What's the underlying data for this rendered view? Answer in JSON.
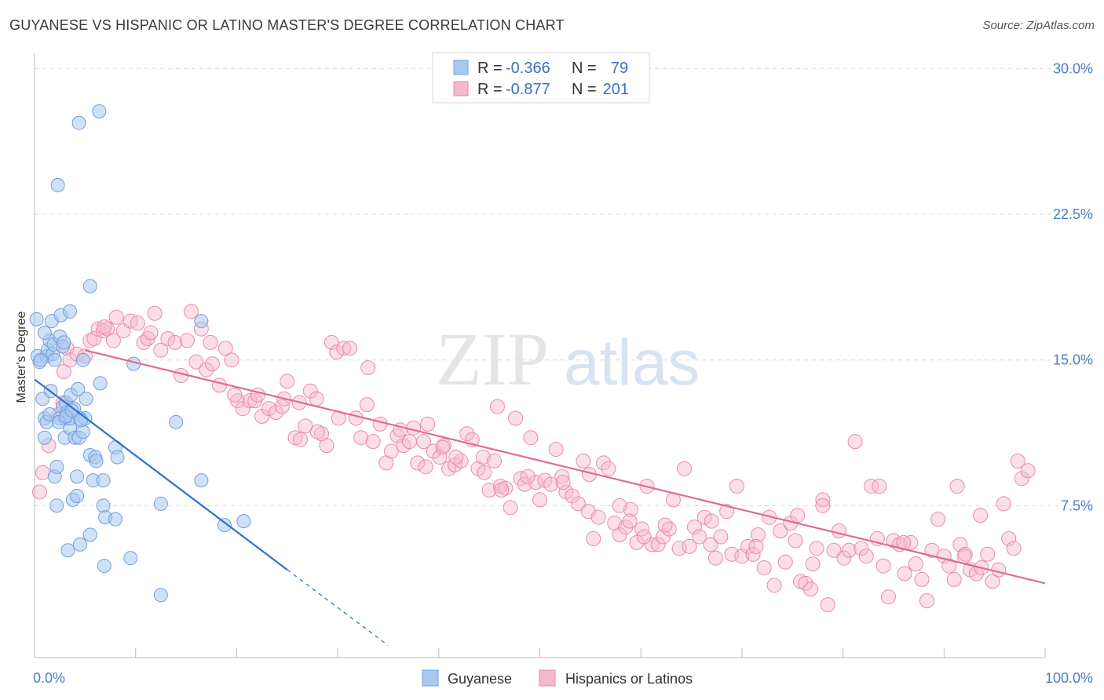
{
  "title": "GUYANESE VS HISPANIC OR LATINO MASTER'S DEGREE CORRELATION CHART",
  "source": "Source: ZipAtlas.com",
  "watermark": {
    "zip": "ZIP",
    "atlas": "atlas"
  },
  "colors": {
    "blue_fill": "#a9c8f0",
    "blue_stroke": "#6f9fdc",
    "blue_line": "#2f6fd0",
    "pink_fill": "#f6b8cb",
    "pink_stroke": "#e98aa8",
    "pink_line": "#e06a96",
    "grid": "#d9d9d9",
    "tick_text": "#4a7fc8"
  },
  "legend": {
    "rows": [
      {
        "r_label": "R = ",
        "r_value": "-0.366",
        "n_label": "N = ",
        "n_value": "79"
      },
      {
        "r_label": "R = ",
        "r_value": "-0.877",
        "n_label": "N = ",
        "n_value": "201"
      }
    ]
  },
  "chart_data": {
    "type": "scatter",
    "title": "GUYANESE VS HISPANIC OR LATINO MASTER'S DEGREE CORRELATION CHART",
    "xlabel": "",
    "ylabel": "Master's Degree",
    "xlim": [
      0,
      100
    ],
    "ylim": [
      0,
      30.5
    ],
    "x_tick_labels": [
      "0.0%",
      "100.0%"
    ],
    "y_ticks": [
      7.5,
      15.0,
      22.5,
      30.0
    ],
    "y_tick_labels": [
      "7.5%",
      "15.0%",
      "22.5%",
      "30.0%"
    ],
    "grid": true,
    "legend_placement": "top-center",
    "series": [
      {
        "name": "Guyanese",
        "color": "#a9c8f0",
        "trend": {
          "x": [
            0,
            25,
            35
          ],
          "y": [
            14.0,
            4.2,
            0.3
          ]
        },
        "points": [
          [
            0.2,
            17.1
          ],
          [
            0.3,
            15.2
          ],
          [
            0.5,
            14.9
          ],
          [
            0.8,
            13.0
          ],
          [
            1.0,
            12.0
          ],
          [
            1.0,
            11.0
          ],
          [
            1.2,
            11.8
          ],
          [
            1.2,
            15.2
          ],
          [
            1.3,
            15.5
          ],
          [
            1.5,
            16.0
          ],
          [
            1.5,
            12.2
          ],
          [
            1.7,
            17.0
          ],
          [
            1.8,
            15.3
          ],
          [
            1.9,
            15.8
          ],
          [
            2.0,
            15.0
          ],
          [
            2.0,
            9.0
          ],
          [
            2.2,
            9.5
          ],
          [
            2.2,
            7.5
          ],
          [
            2.5,
            12.0
          ],
          [
            2.5,
            16.2
          ],
          [
            2.6,
            17.3
          ],
          [
            2.8,
            12.6
          ],
          [
            2.8,
            15.7
          ],
          [
            3.0,
            11.0
          ],
          [
            3.0,
            12.0
          ],
          [
            3.1,
            12.8
          ],
          [
            3.2,
            12.3
          ],
          [
            3.3,
            5.2
          ],
          [
            3.5,
            11.5
          ],
          [
            3.5,
            12.0
          ],
          [
            3.6,
            13.2
          ],
          [
            3.8,
            7.8
          ],
          [
            3.5,
            17.5
          ],
          [
            3.9,
            12.5
          ],
          [
            4.0,
            11.0
          ],
          [
            4.2,
            8.0
          ],
          [
            4.2,
            9.0
          ],
          [
            4.3,
            13.5
          ],
          [
            4.4,
            11.0
          ],
          [
            4.5,
            12.0
          ],
          [
            4.5,
            5.5
          ],
          [
            4.8,
            15.0
          ],
          [
            4.8,
            11.3
          ],
          [
            5.0,
            12.0
          ],
          [
            5.1,
            13.0
          ],
          [
            5.5,
            10.1
          ],
          [
            5.8,
            8.8
          ],
          [
            5.5,
            6.0
          ],
          [
            6.0,
            10.0
          ],
          [
            6.1,
            9.8
          ],
          [
            6.5,
            13.8
          ],
          [
            6.8,
            7.5
          ],
          [
            6.8,
            8.8
          ],
          [
            6.9,
            4.4
          ],
          [
            7.0,
            6.9
          ],
          [
            8.0,
            6.8
          ],
          [
            8.0,
            10.5
          ],
          [
            8.2,
            10.0
          ],
          [
            9.5,
            4.8
          ],
          [
            9.8,
            14.8
          ],
          [
            12.5,
            7.6
          ],
          [
            12.5,
            2.9
          ],
          [
            14.0,
            11.8
          ],
          [
            16.5,
            8.8
          ],
          [
            16.5,
            17.0
          ],
          [
            18.8,
            6.5
          ],
          [
            20.7,
            6.7
          ],
          [
            5.5,
            18.8
          ],
          [
            2.3,
            24.0
          ],
          [
            4.4,
            27.2
          ],
          [
            6.4,
            27.8
          ],
          [
            1.0,
            16.4
          ],
          [
            0.6,
            15.0
          ],
          [
            2.4,
            11.8
          ],
          [
            3.1,
            12.1
          ],
          [
            1.6,
            13.4
          ],
          [
            4.6,
            11.9
          ],
          [
            3.7,
            12.4
          ],
          [
            2.9,
            15.9
          ]
        ]
      },
      {
        "name": "Hispanics or Latinos",
        "color": "#f6b8cb",
        "trend": {
          "x": [
            5,
            100
          ],
          "y": [
            15.5,
            3.5
          ]
        },
        "points": [
          [
            0.5,
            8.2
          ],
          [
            0.8,
            9.2
          ],
          [
            1.4,
            10.6
          ],
          [
            2.4,
            12.2
          ],
          [
            2.8,
            12.8
          ],
          [
            3.2,
            15.6
          ],
          [
            2.9,
            14.4
          ],
          [
            3.5,
            15.0
          ],
          [
            4.2,
            15.3
          ],
          [
            5.0,
            15.2
          ],
          [
            5.5,
            16.0
          ],
          [
            5.9,
            16.1
          ],
          [
            6.3,
            16.6
          ],
          [
            6.8,
            16.5
          ],
          [
            7.2,
            16.6
          ],
          [
            7.8,
            16.0
          ],
          [
            8.1,
            17.2
          ],
          [
            8.8,
            16.5
          ],
          [
            9.5,
            17.0
          ],
          [
            10.2,
            16.9
          ],
          [
            10.8,
            15.9
          ],
          [
            11.2,
            16.1
          ],
          [
            11.9,
            17.4
          ],
          [
            12.5,
            15.5
          ],
          [
            13.2,
            16.1
          ],
          [
            13.9,
            15.9
          ],
          [
            14.5,
            14.2
          ],
          [
            15.1,
            16.0
          ],
          [
            15.5,
            17.5
          ],
          [
            16.0,
            14.9
          ],
          [
            16.5,
            16.6
          ],
          [
            17.0,
            14.5
          ],
          [
            17.6,
            14.8
          ],
          [
            18.3,
            13.7
          ],
          [
            18.9,
            15.6
          ],
          [
            19.5,
            15.0
          ],
          [
            20.1,
            12.9
          ],
          [
            20.6,
            12.5
          ],
          [
            21.3,
            12.9
          ],
          [
            21.8,
            12.9
          ],
          [
            22.5,
            12.1
          ],
          [
            23.2,
            12.5
          ],
          [
            23.9,
            12.3
          ],
          [
            24.5,
            12.6
          ],
          [
            25.0,
            13.9
          ],
          [
            25.8,
            11.0
          ],
          [
            26.2,
            12.8
          ],
          [
            26.8,
            11.6
          ],
          [
            27.3,
            13.4
          ],
          [
            27.9,
            13.0
          ],
          [
            28.4,
            11.2
          ],
          [
            28.9,
            10.6
          ],
          [
            29.4,
            15.9
          ],
          [
            29.9,
            15.4
          ],
          [
            30.6,
            15.6
          ],
          [
            31.2,
            15.6
          ],
          [
            31.8,
            12.0
          ],
          [
            32.3,
            11.0
          ],
          [
            32.9,
            12.7
          ],
          [
            33.5,
            10.8
          ],
          [
            34.2,
            11.7
          ],
          [
            34.8,
            9.7
          ],
          [
            35.3,
            10.3
          ],
          [
            35.9,
            11.1
          ],
          [
            36.5,
            10.6
          ],
          [
            37.1,
            10.8
          ],
          [
            37.5,
            11.5
          ],
          [
            37.9,
            9.7
          ],
          [
            38.5,
            10.8
          ],
          [
            38.9,
            11.7
          ],
          [
            39.5,
            10.3
          ],
          [
            40.1,
            10.0
          ],
          [
            40.5,
            10.6
          ],
          [
            41.0,
            9.4
          ],
          [
            41.6,
            9.6
          ],
          [
            42.2,
            9.8
          ],
          [
            42.8,
            11.2
          ],
          [
            43.3,
            10.9
          ],
          [
            43.9,
            9.4
          ],
          [
            44.4,
            10.0
          ],
          [
            45.0,
            8.3
          ],
          [
            45.5,
            9.8
          ],
          [
            45.8,
            12.6
          ],
          [
            46.1,
            8.5
          ],
          [
            46.6,
            8.4
          ],
          [
            47.1,
            7.4
          ],
          [
            47.6,
            12.0
          ],
          [
            48.1,
            8.9
          ],
          [
            48.5,
            8.6
          ],
          [
            49.1,
            11.0
          ],
          [
            49.6,
            8.7
          ],
          [
            50.0,
            7.8
          ],
          [
            50.5,
            8.8
          ],
          [
            51.1,
            8.6
          ],
          [
            51.6,
            10.4
          ],
          [
            52.2,
            9.0
          ],
          [
            52.6,
            8.2
          ],
          [
            53.2,
            8.0
          ],
          [
            53.8,
            7.6
          ],
          [
            54.3,
            9.8
          ],
          [
            54.8,
            7.2
          ],
          [
            55.3,
            5.8
          ],
          [
            55.8,
            6.9
          ],
          [
            56.3,
            9.7
          ],
          [
            56.8,
            9.4
          ],
          [
            57.4,
            6.6
          ],
          [
            57.9,
            6.0
          ],
          [
            58.5,
            6.4
          ],
          [
            59.0,
            7.3
          ],
          [
            59.6,
            5.6
          ],
          [
            60.1,
            6.3
          ],
          [
            60.6,
            8.5
          ],
          [
            61.1,
            5.5
          ],
          [
            61.7,
            5.5
          ],
          [
            62.2,
            5.9
          ],
          [
            62.8,
            6.3
          ],
          [
            63.2,
            7.8
          ],
          [
            63.8,
            5.3
          ],
          [
            64.3,
            9.4
          ],
          [
            64.8,
            5.4
          ],
          [
            65.3,
            6.4
          ],
          [
            65.8,
            5.9
          ],
          [
            66.3,
            6.9
          ],
          [
            66.9,
            5.5
          ],
          [
            67.4,
            4.8
          ],
          [
            67.9,
            5.9
          ],
          [
            68.5,
            7.2
          ],
          [
            69.0,
            5.0
          ],
          [
            69.5,
            8.5
          ],
          [
            70.0,
            4.9
          ],
          [
            70.6,
            5.4
          ],
          [
            71.1,
            5.0
          ],
          [
            71.6,
            6.0
          ],
          [
            72.2,
            4.3
          ],
          [
            72.7,
            6.9
          ],
          [
            73.2,
            3.4
          ],
          [
            73.8,
            6.2
          ],
          [
            74.3,
            4.6
          ],
          [
            74.8,
            6.6
          ],
          [
            75.3,
            5.7
          ],
          [
            75.8,
            3.6
          ],
          [
            76.3,
            3.5
          ],
          [
            76.8,
            3.2
          ],
          [
            77.4,
            5.3
          ],
          [
            78.0,
            7.8
          ],
          [
            78.5,
            2.4
          ],
          [
            79.1,
            5.2
          ],
          [
            79.6,
            6.2
          ],
          [
            80.1,
            4.8
          ],
          [
            80.6,
            5.2
          ],
          [
            81.2,
            10.8
          ],
          [
            81.8,
            5.3
          ],
          [
            82.3,
            4.9
          ],
          [
            82.8,
            8.5
          ],
          [
            83.4,
            5.8
          ],
          [
            84.0,
            4.4
          ],
          [
            84.5,
            2.8
          ],
          [
            85.0,
            5.7
          ],
          [
            85.6,
            5.5
          ],
          [
            86.1,
            4.0
          ],
          [
            86.7,
            5.6
          ],
          [
            87.2,
            4.5
          ],
          [
            87.8,
            3.7
          ],
          [
            88.3,
            2.6
          ],
          [
            88.8,
            5.2
          ],
          [
            89.4,
            6.8
          ],
          [
            90.0,
            4.9
          ],
          [
            90.5,
            4.4
          ],
          [
            91.0,
            3.7
          ],
          [
            91.6,
            5.5
          ],
          [
            92.1,
            5.0
          ],
          [
            92.6,
            4.2
          ],
          [
            93.2,
            4.0
          ],
          [
            93.7,
            4.3
          ],
          [
            94.3,
            5.0
          ],
          [
            94.8,
            3.6
          ],
          [
            95.4,
            4.2
          ],
          [
            95.9,
            7.6
          ],
          [
            96.4,
            5.8
          ],
          [
            96.9,
            5.3
          ],
          [
            97.3,
            9.8
          ],
          [
            97.7,
            8.9
          ],
          [
            98.3,
            9.3
          ],
          [
            78.0,
            7.5
          ],
          [
            75.5,
            7.0
          ],
          [
            83.6,
            8.5
          ],
          [
            91.3,
            8.5
          ],
          [
            93.6,
            7.0
          ],
          [
            62.4,
            6.5
          ],
          [
            57.9,
            7.5
          ],
          [
            52.3,
            8.7
          ],
          [
            41.7,
            10.0
          ],
          [
            36.2,
            11.4
          ],
          [
            30.1,
            12.0
          ],
          [
            28.0,
            11.3
          ],
          [
            24.7,
            13.0
          ],
          [
            19.8,
            13.2
          ],
          [
            17.4,
            15.9
          ],
          [
            11.5,
            16.4
          ],
          [
            6.9,
            16.7
          ],
          [
            33.0,
            14.6
          ],
          [
            22.1,
            13.2
          ],
          [
            40.4,
            10.5
          ],
          [
            44.5,
            9.2
          ],
          [
            48.8,
            9.0
          ],
          [
            54.9,
            9.1
          ],
          [
            60.3,
            5.9
          ],
          [
            67.0,
            6.7
          ],
          [
            71.4,
            5.4
          ],
          [
            77.0,
            4.5
          ],
          [
            86.0,
            5.6
          ],
          [
            92.0,
            4.9
          ],
          [
            26.3,
            10.9
          ],
          [
            38.7,
            9.5
          ],
          [
            46.2,
            8.3
          ],
          [
            58.9,
            6.7
          ]
        ]
      }
    ]
  },
  "bottom_legend": [
    {
      "label": "Guyanese"
    },
    {
      "label": "Hispanics or Latinos"
    }
  ]
}
